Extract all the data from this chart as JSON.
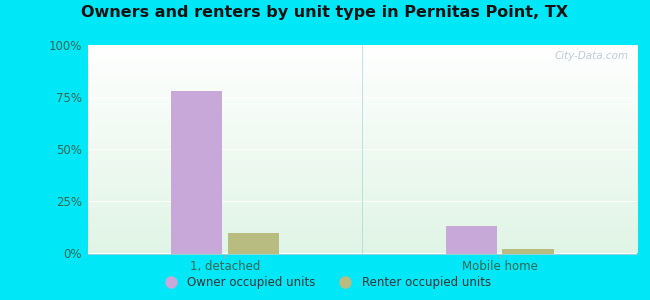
{
  "title": "Owners and renters by unit type in Pernitas Point, TX",
  "categories": [
    "1, detached",
    "Mobile home"
  ],
  "owner_values": [
    78,
    13
  ],
  "renter_values": [
    10,
    2
  ],
  "owner_color": "#c8a8d8",
  "renter_color": "#b8bc80",
  "owner_label": "Owner occupied units",
  "renter_label": "Renter occupied units",
  "yticks": [
    0,
    25,
    50,
    75,
    100
  ],
  "ylim": [
    0,
    100
  ],
  "background_outer": "#00e8f8",
  "watermark": "City-Data.com",
  "bar_width": 0.28,
  "group_positions": [
    0.75,
    2.25
  ],
  "xlim": [
    0,
    3.0
  ]
}
